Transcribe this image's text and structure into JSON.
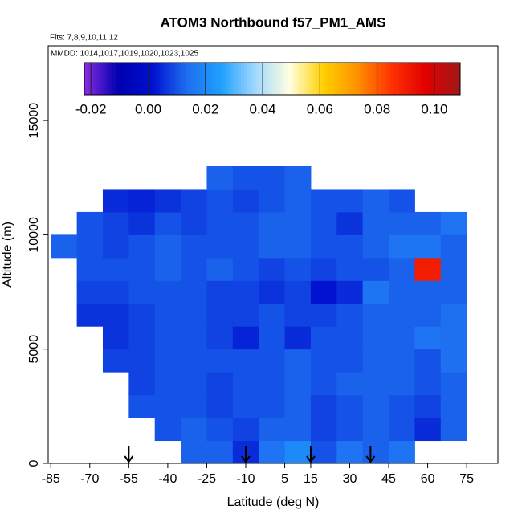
{
  "chart_data": {
    "type": "heatmap",
    "title": "ATOM3 Northbound f57_PM1_AMS",
    "subtitle": "Flts: 7,8,9,10,11,12",
    "note": "MMDD: 1014,1017,1019,1020,1023,1025",
    "x_label": "Latitude (deg N)",
    "y_label": "Altitude (m)",
    "xlim": [
      -86,
      87
    ],
    "ylim": [
      0,
      18270
    ],
    "xticks": [
      -85,
      -70,
      -55,
      -40,
      -25,
      -10,
      5,
      15,
      30,
      45,
      60,
      75
    ],
    "yticks": [
      0,
      5000,
      10000,
      15000
    ],
    "x_bins": [
      -85,
      -75,
      -65,
      -55,
      -45,
      -35,
      -25,
      -15,
      -5,
      5,
      15,
      25,
      35,
      45,
      55,
      65,
      75,
      85
    ],
    "y_bins": [
      0,
      1000,
      2000,
      3000,
      4000,
      5000,
      6000,
      7000,
      8000,
      9000,
      10000,
      11000,
      12000,
      13000
    ],
    "values": [
      [
        null,
        null,
        null,
        null,
        null,
        0.012,
        0.012,
        0.005,
        0.015,
        0.02,
        0.01,
        0.015,
        0.012,
        0.015,
        null,
        null,
        null
      ],
      [
        null,
        null,
        null,
        null,
        0.01,
        0.012,
        0.01,
        0.008,
        0.012,
        0.012,
        0.008,
        0.01,
        0.012,
        0.01,
        0.005,
        0.012,
        null
      ],
      [
        null,
        null,
        null,
        0.01,
        0.01,
        0.01,
        0.008,
        0.01,
        0.01,
        0.012,
        0.008,
        0.01,
        0.012,
        0.01,
        0.008,
        0.012,
        null
      ],
      [
        null,
        null,
        null,
        0.008,
        0.01,
        0.01,
        0.008,
        0.01,
        0.01,
        0.012,
        0.01,
        0.012,
        0.012,
        0.012,
        0.01,
        0.012,
        null
      ],
      [
        null,
        null,
        0.008,
        0.008,
        0.01,
        0.01,
        0.01,
        0.01,
        0.01,
        0.012,
        0.01,
        0.01,
        0.012,
        0.012,
        0.01,
        0.014,
        null
      ],
      [
        null,
        null,
        0.006,
        0.008,
        0.01,
        0.01,
        0.008,
        0.004,
        0.01,
        0.005,
        0.01,
        0.01,
        0.012,
        0.012,
        0.015,
        0.014,
        null
      ],
      [
        null,
        0.006,
        0.006,
        0.008,
        0.01,
        0.01,
        0.008,
        0.008,
        0.01,
        0.008,
        0.008,
        0.01,
        0.012,
        0.012,
        0.012,
        0.014,
        null
      ],
      [
        null,
        0.008,
        0.008,
        0.01,
        0.01,
        0.01,
        0.008,
        0.008,
        0.006,
        0.008,
        0.002,
        0.005,
        0.015,
        0.012,
        0.012,
        0.012,
        null
      ],
      [
        null,
        0.01,
        0.01,
        0.01,
        0.012,
        0.01,
        0.012,
        0.01,
        0.008,
        0.01,
        0.008,
        0.01,
        0.01,
        0.012,
        0.09,
        0.012,
        null
      ],
      [
        0.012,
        0.01,
        0.008,
        0.01,
        0.012,
        0.01,
        0.01,
        0.01,
        0.012,
        0.012,
        0.01,
        0.01,
        0.012,
        0.015,
        0.015,
        0.012,
        null
      ],
      [
        null,
        0.01,
        0.008,
        0.006,
        0.01,
        0.008,
        0.01,
        0.01,
        0.012,
        0.012,
        0.01,
        0.006,
        0.012,
        0.012,
        0.012,
        0.015,
        null
      ],
      [
        null,
        null,
        0.005,
        0.004,
        0.006,
        0.008,
        0.01,
        0.008,
        0.01,
        0.012,
        0.01,
        0.01,
        0.012,
        0.01,
        null,
        null,
        null
      ],
      [
        null,
        null,
        null,
        null,
        null,
        null,
        0.012,
        0.01,
        0.01,
        0.012,
        null,
        null,
        null,
        null,
        null,
        null,
        null
      ]
    ],
    "arrows": [
      -55,
      -10,
      15,
      38
    ],
    "colorbar": {
      "lim": [
        -0.0223,
        0.109
      ],
      "ticks": [
        {
          "value": -0.02,
          "label": "-0.02"
        },
        {
          "value": 0,
          "label": "0.00"
        },
        {
          "value": 0.02,
          "label": "0.02"
        },
        {
          "value": 0.04,
          "label": "0.04"
        },
        {
          "value": 0.06,
          "label": "0.06"
        },
        {
          "value": 0.08,
          "label": "0.08"
        },
        {
          "value": 0.1,
          "label": "0.10"
        }
      ],
      "colors": [
        "#8a2be2",
        "#0000b0",
        "#0010d0",
        "#1e6ef0",
        "#1ea0ff",
        "#a0d8ff",
        "#ffffe0",
        "#ffd000",
        "#ff9000",
        "#ff3000",
        "#e00000",
        "#a01818"
      ]
    }
  }
}
